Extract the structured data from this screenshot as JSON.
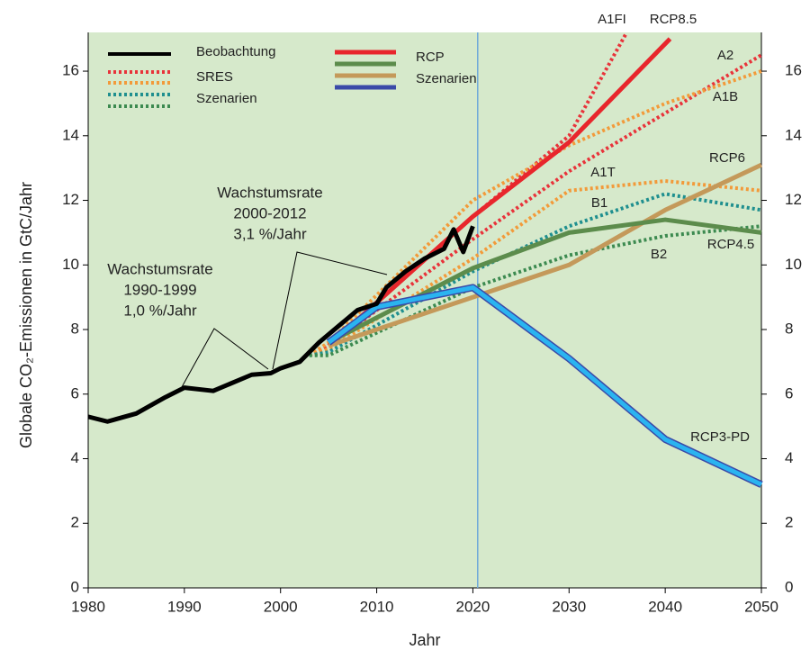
{
  "chart_data": {
    "type": "line",
    "y_label": "Globale CO₂-Emissionen in GtC/Jahr",
    "x_label": "Jahr",
    "xlim": [
      1980,
      2050
    ],
    "xticks": [
      1980,
      1990,
      2000,
      2010,
      2020,
      2030,
      2040,
      2050
    ],
    "ylim": [
      0,
      17.2
    ],
    "yticks": [
      0,
      2,
      4,
      6,
      8,
      10,
      12,
      14,
      16
    ],
    "y2lim": [
      0,
      17.2
    ],
    "y2ticks": [
      0,
      2,
      4,
      6,
      8,
      10,
      12,
      14,
      16
    ],
    "vline": 2020.5,
    "legend": {
      "observation": "Beobachtung",
      "sres": [
        "SRES",
        "Szenarien"
      ],
      "rcp": [
        "RCP",
        "Szenarien"
      ]
    },
    "annotations": [
      [
        "Wachstumsrate",
        "1990-1999",
        "1,0 %/Jahr"
      ],
      [
        "Wachstumsrate",
        "2000-2012",
        "3,1 %/Jahr"
      ]
    ],
    "series": [
      {
        "name": "A1FI",
        "color": "#e8333a",
        "dash": true,
        "x": [
          2003,
          2005,
          2020,
          2030,
          2036
        ],
        "values": [
          7.2,
          7.5,
          11.5,
          14,
          17.2
        ]
      },
      {
        "name": "A2",
        "color": "#e8333a",
        "dash": true,
        "x": [
          2003,
          2005,
          2020,
          2030,
          2040,
          2050
        ],
        "values": [
          7.2,
          7.5,
          10.8,
          12.9,
          14.7,
          16.5
        ]
      },
      {
        "name": "A1B",
        "color": "#f29a3a",
        "dash": true,
        "x": [
          2003,
          2005,
          2020,
          2030,
          2040,
          2050
        ],
        "values": [
          7.2,
          7.6,
          12,
          13.7,
          15,
          16
        ]
      },
      {
        "name": "A1T",
        "color": "#f29a3a",
        "dash": true,
        "x": [
          2003,
          2005,
          2020,
          2030,
          2040,
          2050
        ],
        "values": [
          7.2,
          7.4,
          10.2,
          12.3,
          12.6,
          12.3
        ]
      },
      {
        "name": "B1",
        "color": "#1f8f8f",
        "dash": true,
        "x": [
          2003,
          2005,
          2020,
          2030,
          2040,
          2050
        ],
        "values": [
          7.2,
          7.3,
          9.8,
          11.2,
          12.2,
          11.7
        ]
      },
      {
        "name": "B2",
        "color": "#3c8a50",
        "dash": true,
        "x": [
          2003,
          2005,
          2020,
          2030,
          2040,
          2050
        ],
        "values": [
          7.2,
          7.2,
          9.3,
          10.3,
          10.9,
          11.2
        ]
      },
      {
        "name": "RCP8.5",
        "color": "#e8262c",
        "dash": false,
        "x": [
          2005,
          2020,
          2030,
          2040.5
        ],
        "values": [
          7.5,
          11.5,
          13.8,
          17.0
        ]
      },
      {
        "name": "RCP6",
        "color": "#c4995a",
        "dash": false,
        "x": [
          2005,
          2020,
          2030,
          2040,
          2050
        ],
        "values": [
          7.5,
          9.0,
          10.0,
          11.7,
          13.1
        ]
      },
      {
        "name": "RCP4.5",
        "color": "#5c8c4c",
        "dash": false,
        "x": [
          2005,
          2020,
          2030,
          2040,
          2050
        ],
        "values": [
          7.6,
          9.9,
          11.0,
          11.4,
          11.0
        ]
      },
      {
        "name": "RCP3-PD",
        "color": "#2ab4f0",
        "dash": false,
        "x": [
          2005,
          2010,
          2020,
          2030,
          2040,
          2050
        ],
        "values": [
          7.6,
          8.7,
          9.3,
          7.1,
          4.6,
          3.2
        ]
      },
      {
        "name": "Beobachtung",
        "color": "#000000",
        "dash": false,
        "x": [
          1980,
          1982,
          1985,
          1988,
          1990,
          1993,
          1997,
          1999,
          2000,
          2002,
          2004,
          2006,
          2008,
          2010,
          2011,
          2013,
          2015,
          2017,
          2018,
          2019,
          2020
        ],
        "values": [
          5.3,
          5.15,
          5.4,
          5.9,
          6.2,
          6.1,
          6.6,
          6.65,
          6.8,
          7.0,
          7.6,
          8.1,
          8.6,
          8.8,
          9.3,
          9.8,
          10.2,
          10.5,
          11.1,
          10.4,
          11.2
        ]
      }
    ]
  }
}
